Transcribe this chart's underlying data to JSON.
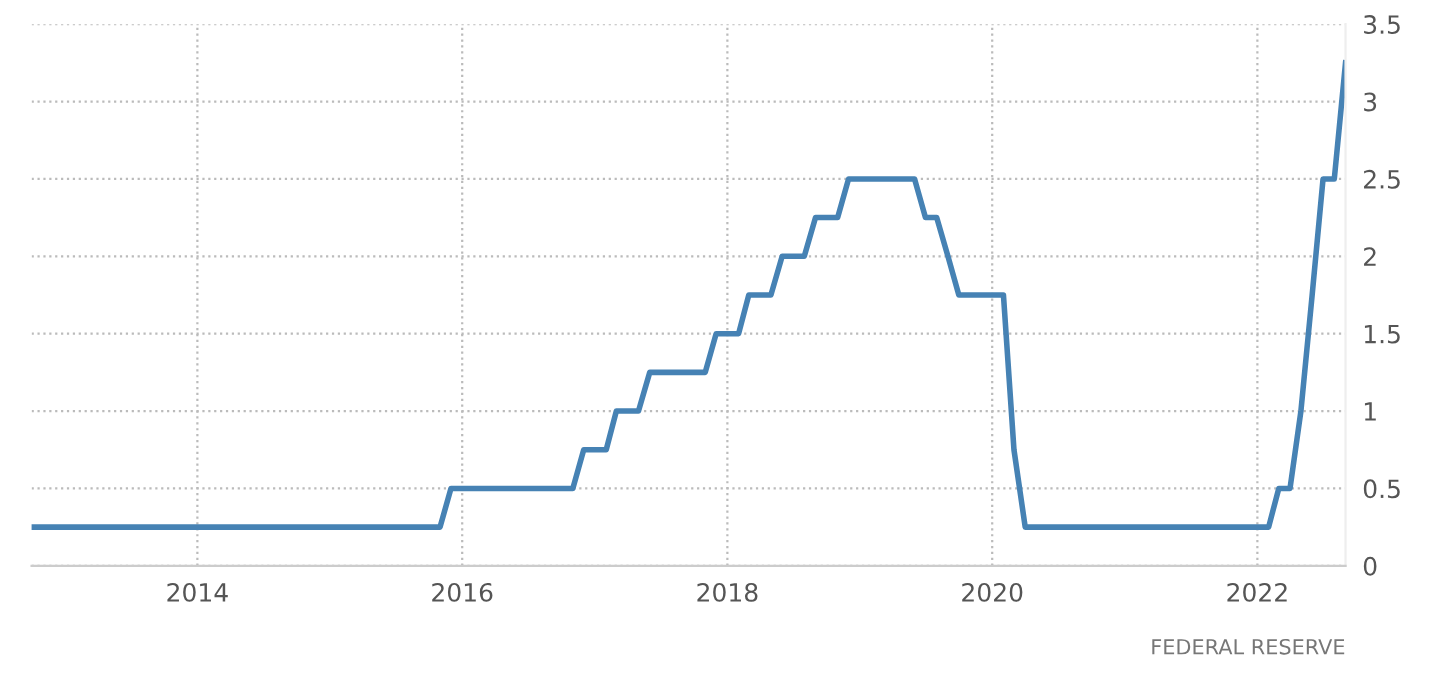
{
  "chart_data": {
    "type": "line",
    "x": [
      "2012-10",
      "2015-11",
      "2015-12",
      "2016-11",
      "2016-12",
      "2017-02",
      "2017-03",
      "2017-05",
      "2017-06",
      "2017-11",
      "2017-12",
      "2018-02",
      "2018-03",
      "2018-05",
      "2018-06",
      "2018-08",
      "2018-09",
      "2018-11",
      "2018-12",
      "2019-06",
      "2019-07",
      "2019-08",
      "2019-09",
      "2019-10",
      "2020-02",
      "2020-03",
      "2020-04",
      "2022-02",
      "2022-03",
      "2022-04",
      "2022-05",
      "2022-06",
      "2022-07",
      "2022-08",
      "2022-09"
    ],
    "series": [
      {
        "color": "#4682b4",
        "values": [
          0.25,
          0.25,
          0.5,
          0.5,
          0.75,
          0.75,
          1.0,
          1.0,
          1.25,
          1.25,
          1.5,
          1.5,
          1.75,
          1.75,
          2.0,
          2.0,
          2.25,
          2.25,
          2.5,
          2.5,
          2.25,
          2.25,
          2.0,
          1.75,
          1.75,
          0.75,
          0.25,
          0.25,
          0.5,
          0.5,
          1.0,
          1.75,
          2.5,
          2.5,
          3.25
        ]
      }
    ],
    "xlim": [
      "2012-10",
      "2022-09"
    ],
    "xticks": [
      {
        "value": "2014",
        "label": "2014"
      },
      {
        "value": "2016",
        "label": "2016"
      },
      {
        "value": "2018",
        "label": "2018"
      },
      {
        "value": "2020",
        "label": "2020"
      },
      {
        "value": "2022",
        "label": "2022"
      }
    ],
    "ylim": [
      0,
      3.5
    ],
    "yticks": [
      0,
      0.5,
      1,
      1.5,
      2,
      2.5,
      3,
      3.5
    ],
    "grid": true,
    "marker": "none",
    "line_style": "solid",
    "annotations": [
      "FEDERAL RESERVE"
    ]
  }
}
